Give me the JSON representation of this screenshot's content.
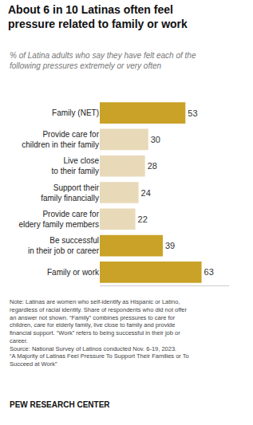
{
  "chart_data": {
    "type": "bar",
    "orientation": "horizontal",
    "title": "About 6 in 10 Latinas often feel\npressure related to family or work",
    "subtitle": "% of Latina adults who say they have felt each of the\nfollowing pressures extremely or very often",
    "categories": [
      "Family (NET)",
      "Provide care for\nchildren in their family",
      "Live close\nto their family",
      "Support their\nfamily financially",
      "Provide care for\neldery family members",
      "Be successful\nin their job or career",
      "Family or work"
    ],
    "values": [
      53,
      30,
      28,
      24,
      22,
      39,
      63
    ],
    "colors": [
      "#c9a227",
      "#e8d9b8",
      "#e8d9b8",
      "#e8d9b8",
      "#e8d9b8",
      "#c9a227",
      "#c9a227"
    ],
    "xlim": [
      0,
      80
    ],
    "data_labels": true,
    "tick_labels": false,
    "grid": false,
    "annotations": [
      "Note: Latinas are women who self-identify as Hispanic or Latino,\nregardless of racial identity. Share of respondents who did not offer\nan answer not shown. “Family” combines pressures to care for\nchildren, care for elderly family, live close to family and provide\nfinancial support. “Work” refers to being successful in their job or\ncareer.\nSource: National Survey of Latinos conducted Nov. 6-19, 2023.\n“A Majority of Latinas Feel Pressure To Support Their Families or To\nSucceed at Work”",
      "PEW RESEARCH CENTER"
    ]
  }
}
